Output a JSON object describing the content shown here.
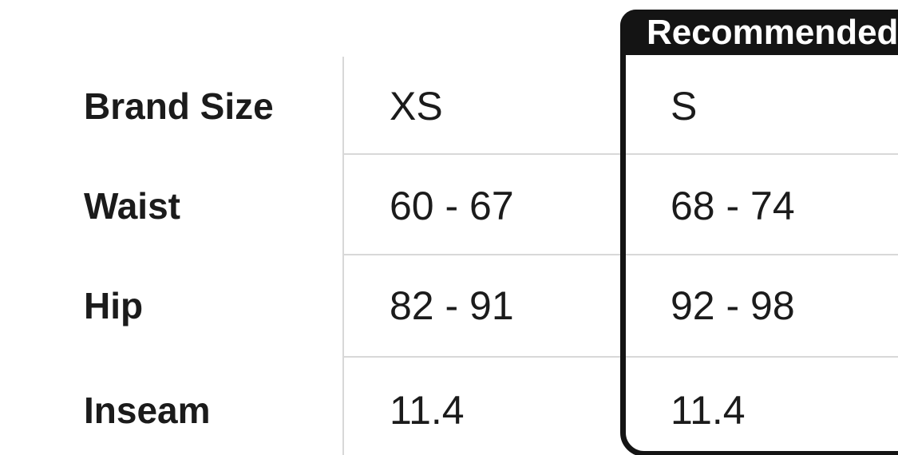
{
  "table": {
    "recommended_label": "Recommended",
    "rows": [
      {
        "label": "Brand Size",
        "xs": "XS",
        "s": "S"
      },
      {
        "label": "Waist",
        "xs": "60 - 67",
        "s": "68 - 74"
      },
      {
        "label": "Hip",
        "xs": "82 - 91",
        "s": "92 - 98"
      },
      {
        "label": "Inseam",
        "xs": "11.4",
        "s": "11.4"
      }
    ],
    "colors": {
      "highlight_black": "#141414",
      "divider_gray": "#d8d8d8",
      "text": "#1b1b1b",
      "header_text": "#ffffff"
    }
  }
}
